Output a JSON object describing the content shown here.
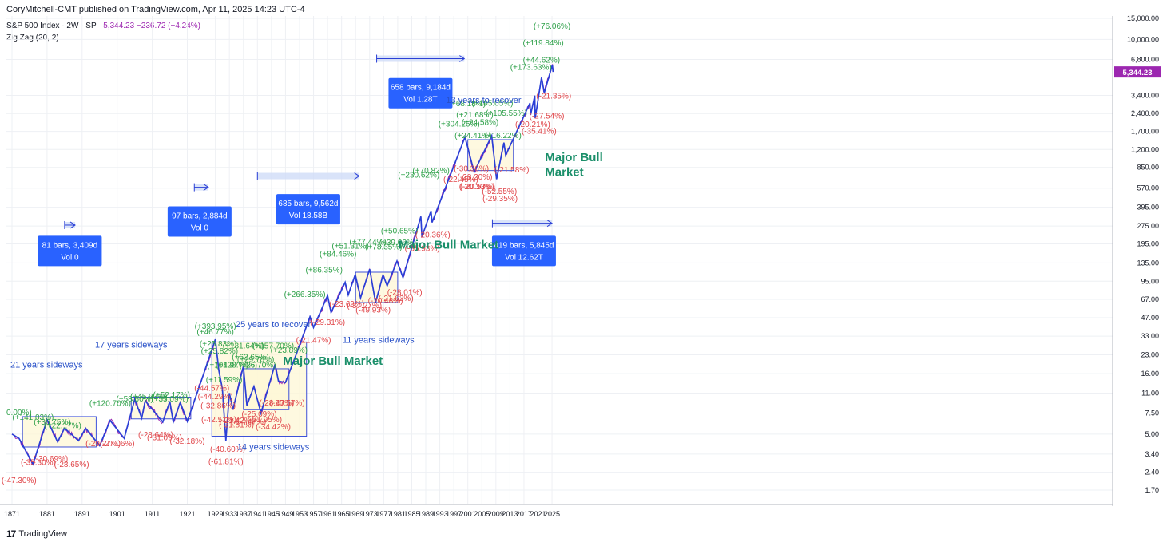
{
  "header": {
    "publish_line": "CoryMitchell-CMT published on TradingView.com, Apr 11, 2025 14:23 UTC-4",
    "symbol": "S&P 500 Index · 2W · SP",
    "price_line": "5,344.23  −236.72 (−4.24%)",
    "indicator": "Zig Zag (20, 2)"
  },
  "footer": {
    "brand": "TradingView",
    "logo_icon": "tradingview-logo-icon"
  },
  "colors": {
    "price": "#9c27b0",
    "zigzag": "#2a3fd6",
    "up": "#2fa14a",
    "down": "#e0464a",
    "annot": "#2850c8",
    "bull": "#1b8f6a",
    "box_fill": "#fdf7d6",
    "range_fill": "#cfdcf7",
    "badge": "#2962ff"
  },
  "chart_data": {
    "type": "line",
    "yscale": "log",
    "x_ticks": [
      "1871",
      "1881",
      "1891",
      "1901",
      "1911",
      "1921",
      "1929",
      "1933",
      "1937",
      "1941",
      "1945",
      "1949",
      "1953",
      "1957",
      "1961",
      "1965",
      "1969",
      "1973",
      "1977",
      "1981",
      "1985",
      "1989",
      "1993",
      "1997",
      "2001",
      "2005",
      "2009",
      "2013",
      "2017",
      "2021",
      "2025"
    ],
    "y_ticks": [
      "15,000.00",
      "10,000.00",
      "6,800.00",
      "3,400.00",
      "2,400.00",
      "1,700.00",
      "1,200.00",
      "850.00",
      "570.00",
      "395.00",
      "275.00",
      "195.00",
      "135.00",
      "95.00",
      "67.00",
      "47.00",
      "33.00",
      "23.00",
      "16.00",
      "11.00",
      "7.50",
      "5.00",
      "3.40",
      "2.40",
      "1.70"
    ],
    "last_price": "5,344.23",
    "series": [
      {
        "values": [
          [
            1871,
            5.0
          ],
          [
            1873,
            4.6
          ],
          [
            1877,
            2.8
          ],
          [
            1881,
            6.6
          ],
          [
            1884,
            4.3
          ],
          [
            1886,
            5.6
          ],
          [
            1890,
            4.4
          ],
          [
            1892,
            5.6
          ],
          [
            1896,
            4.0
          ],
          [
            1899,
            6.5
          ],
          [
            1903,
            4.6
          ],
          [
            1906,
            9.8
          ],
          [
            1908,
            6.8
          ],
          [
            1909,
            9.5
          ],
          [
            1914,
            6.3
          ],
          [
            1916,
            9.4
          ],
          [
            1917,
            6.3
          ],
          [
            1919,
            9.2
          ],
          [
            1921,
            6.4
          ],
          [
            1925,
            14
          ],
          [
            1929,
            31
          ],
          [
            1930,
            17
          ],
          [
            1931,
            12
          ],
          [
            1932,
            4.4
          ],
          [
            1933,
            11
          ],
          [
            1934,
            8
          ],
          [
            1937,
            18.5
          ],
          [
            1938,
            8.7
          ],
          [
            1940,
            12.5
          ],
          [
            1942,
            7.5
          ],
          [
            1946,
            19.2
          ],
          [
            1947,
            13.9
          ],
          [
            1949,
            13.5
          ],
          [
            1952,
            23
          ],
          [
            1956,
            48
          ],
          [
            1957,
            39
          ],
          [
            1961,
            72
          ],
          [
            1962,
            52
          ],
          [
            1966,
            93
          ],
          [
            1966.9,
            73
          ],
          [
            1968.9,
            108
          ],
          [
            1970.4,
            69
          ],
          [
            1973,
            120
          ],
          [
            1974.7,
            63
          ],
          [
            1976.8,
            107
          ],
          [
            1978,
            87
          ],
          [
            1980.8,
            140
          ],
          [
            1982.5,
            102
          ],
          [
            1987.6,
            330
          ],
          [
            1987.9,
            224
          ],
          [
            1990.5,
            368
          ],
          [
            1990.8,
            295
          ],
          [
            2000.2,
            1527
          ],
          [
            2002.8,
            777
          ],
          [
            2007.8,
            1565
          ],
          [
            2009.2,
            677
          ],
          [
            2011.3,
            1370
          ],
          [
            2011.8,
            1075
          ],
          [
            2018.7,
            2930
          ],
          [
            2018.9,
            2351
          ],
          [
            2020.1,
            3386
          ],
          [
            2020.2,
            2192
          ],
          [
            2022,
            4797
          ],
          [
            2022.8,
            3577
          ],
          [
            2025.1,
            6144
          ],
          [
            2025.3,
            5344
          ]
        ]
      }
    ],
    "labels_up": [
      {
        "text": "(+141.03%)",
        "x": 1877,
        "y": 6.6
      },
      {
        "text": "(+36.75%)",
        "x": 1882.5,
        "y": 6.0
      },
      {
        "text": "(+22.17%)",
        "x": 1885.5,
        "y": 5.6
      },
      {
        "text": "(+120.70%)",
        "x": 1899,
        "y": 8.6
      },
      {
        "text": "(+58.60%)",
        "x": 1906,
        "y": 9.4
      },
      {
        "text": "(+45.93%)",
        "x": 1910,
        "y": 9.8
      },
      {
        "text": "(+35.09%)",
        "x": 1916,
        "y": 9.4
      },
      {
        "text": "(+52.17%)",
        "x": 1916.5,
        "y": 10.1
      },
      {
        "text": "(+393.95%)",
        "x": 1929,
        "y": 38
      },
      {
        "text": "(+46.77%)",
        "x": 1929,
        "y": 34
      },
      {
        "text": "(+25.83%)",
        "x": 1929.8,
        "y": 27
      },
      {
        "text": "(+25.82%)",
        "x": 1930.2,
        "y": 23.5
      },
      {
        "text": "(+104.97%)",
        "x": 1932.5,
        "y": 18
      },
      {
        "text": "(+128.74%)",
        "x": 1935,
        "y": 18
      },
      {
        "text": "(+11.59%)",
        "x": 1931.5,
        "y": 13.5
      },
      {
        "text": "(+131.64%)",
        "x": 1937,
        "y": 26
      },
      {
        "text": "(+62.65%)",
        "x": 1939,
        "y": 21
      },
      {
        "text": "(+29.78%)",
        "x": 1940.5,
        "y": 20
      },
      {
        "text": "(+26.70%)",
        "x": 1941,
        "y": 18
      },
      {
        "text": "(+157.70%)",
        "x": 1945.5,
        "y": 26
      },
      {
        "text": "(+23.89%)",
        "x": 1950,
        "y": 24
      },
      {
        "text": "(+266.35%)",
        "x": 1954.5,
        "y": 70
      },
      {
        "text": "(+86.35%)",
        "x": 1960,
        "y": 112
      },
      {
        "text": "(+84.46%)",
        "x": 1964,
        "y": 152
      },
      {
        "text": "(+51.31%)",
        "x": 1967.5,
        "y": 178
      },
      {
        "text": "(+77.44%)",
        "x": 1972.5,
        "y": 192
      },
      {
        "text": "(+78.35%)",
        "x": 1977,
        "y": 175
      },
      {
        "text": "(+39.06%)",
        "x": 1981,
        "y": 190
      },
      {
        "text": "(+50.65%)",
        "x": 1981.5,
        "y": 238
      },
      {
        "text": "(+230.62%)",
        "x": 1987,
        "y": 700
      },
      {
        "text": "(+70.82%)",
        "x": 1990.5,
        "y": 760
      },
      {
        "text": "(+304.26%)",
        "x": 1998.5,
        "y": 1870
      },
      {
        "text": "(+68.18%)",
        "x": 2000.8,
        "y": 2770
      },
      {
        "text": "(+21.68%)",
        "x": 2003,
        "y": 2230
      },
      {
        "text": "(+24.58%)",
        "x": 2004.5,
        "y": 1930
      },
      {
        "text": "(+24.41%)",
        "x": 2002.5,
        "y": 1500
      },
      {
        "text": "(+105.05%)",
        "x": 2008,
        "y": 2780
      },
      {
        "text": "(+105.55%)",
        "x": 2012,
        "y": 2300
      },
      {
        "text": "(+16.22%)",
        "x": 2011,
        "y": 1500
      },
      {
        "text": "(+173.63%)",
        "x": 2019,
        "y": 5550
      },
      {
        "text": "(+44.62%)",
        "x": 2022,
        "y": 6390
      },
      {
        "text": "(+119.84%)",
        "x": 2022.5,
        "y": 8900
      },
      {
        "text": "(+76.06%)",
        "x": 2025,
        "y": 12300
      }
    ],
    "labels_down": [
      {
        "text": "(-47.30%)",
        "x": 1873,
        "y": 1.95
      },
      {
        "text": "(-35.30%)",
        "x": 1878.5,
        "y": 2.75
      },
      {
        "text": "(-30.69%)",
        "x": 1882,
        "y": 2.95
      },
      {
        "text": "(-28.65%)",
        "x": 1888,
        "y": 2.65
      },
      {
        "text": "(-29.27%)",
        "x": 1897,
        "y": 3.95
      },
      {
        "text": "(-27.06%)",
        "x": 1901,
        "y": 3.95
      },
      {
        "text": "(-28.64%)",
        "x": 1912,
        "y": 4.7
      },
      {
        "text": "(-31.09%)",
        "x": 1914.5,
        "y": 4.45
      },
      {
        "text": "(-32.18%)",
        "x": 1921,
        "y": 4.15
      },
      {
        "text": "(-44.57%)",
        "x": 1928,
        "y": 11.5
      },
      {
        "text": "(-44.29%)",
        "x": 1929,
        "y": 9.8
      },
      {
        "text": "(-32.86%)",
        "x": 1929.8,
        "y": 8.2
      },
      {
        "text": "(-42.51%)",
        "x": 1930,
        "y": 6.3
      },
      {
        "text": "(-40.60%)",
        "x": 1932.5,
        "y": 3.55
      },
      {
        "text": "(-61.81%)",
        "x": 1932,
        "y": 2.8
      },
      {
        "text": "(-31.81%)",
        "x": 1935,
        "y": 5.7
      },
      {
        "text": "(-21.42%)",
        "x": 1935,
        "y": 6.2
      },
      {
        "text": "(-54.47%)",
        "x": 1938.5,
        "y": 6.05
      },
      {
        "text": "(-25.09%)",
        "x": 1941.5,
        "y": 7.0
      },
      {
        "text": "(-21.95%)",
        "x": 1943,
        "y": 6.3
      },
      {
        "text": "(-34.42%)",
        "x": 1945.5,
        "y": 5.45
      },
      {
        "text": "(-28.47%)",
        "x": 1946.5,
        "y": 8.7
      },
      {
        "text": "(-20.57%)",
        "x": 1949.5,
        "y": 8.7
      },
      {
        "text": "(-21.47%)",
        "x": 1957,
        "y": 29
      },
      {
        "text": "(-29.31%)",
        "x": 1961,
        "y": 41
      },
      {
        "text": "(-23.69%)",
        "x": 1966.5,
        "y": 58.5
      },
      {
        "text": "(-37.27%)",
        "x": 1971.5,
        "y": 56.5
      },
      {
        "text": "(-49.93%)",
        "x": 1974,
        "y": 52
      },
      {
        "text": "(-20.48%)",
        "x": 1977.5,
        "y": 62
      },
      {
        "text": "(-21.62%)",
        "x": 1980.5,
        "y": 65
      },
      {
        "text": "(-28.01%)",
        "x": 1983,
        "y": 73
      },
      {
        "text": "(-35.93%)",
        "x": 1988,
        "y": 170
      },
      {
        "text": "(-20.36%)",
        "x": 1991,
        "y": 220
      },
      {
        "text": "(-22.45%)",
        "x": 1999,
        "y": 640
      },
      {
        "text": "(-30.36%)",
        "x": 2002,
        "y": 790
      },
      {
        "text": "(-28.20%)",
        "x": 2003,
        "y": 670
      },
      {
        "text": "(-20.30%)",
        "x": 2003.5,
        "y": 560
      },
      {
        "text": "(-20.53%)",
        "x": 2003.8,
        "y": 560
      },
      {
        "text": "(-52.55%)",
        "x": 2010,
        "y": 510
      },
      {
        "text": "(-29.35%)",
        "x": 2010.2,
        "y": 445
      },
      {
        "text": "(-21.58%)",
        "x": 2013.5,
        "y": 770
      },
      {
        "text": "(-20.21%)",
        "x": 2019.5,
        "y": 1860
      },
      {
        "text": "(-35.41%)",
        "x": 2021.3,
        "y": 1630
      },
      {
        "text": "(-27.54%)",
        "x": 2023.5,
        "y": 2180
      },
      {
        "text": "(-21.35%)",
        "x": 2025.5,
        "y": 3200
      }
    ],
    "annotations": [
      {
        "text": "21 years sideways",
        "x": 1875.3,
        "y": 18,
        "kind": "note"
      },
      {
        "text": "17 years sideways",
        "x": 1905,
        "y": 26.5,
        "kind": "note"
      },
      {
        "text": "25 years to recover",
        "x": 1945.5,
        "y": 39,
        "kind": "note"
      },
      {
        "text": "14 years sideways",
        "x": 1945.5,
        "y": 3.7,
        "kind": "note"
      },
      {
        "text": "11 years sideways",
        "x": 1975.5,
        "y": 29,
        "kind": "note"
      },
      {
        "text": "13 years to recover",
        "x": 2005.5,
        "y": 2950,
        "kind": "note"
      },
      {
        "text": "Major Bull Market",
        "x": 1962.5,
        "y": 19,
        "kind": "bull"
      },
      {
        "text": "Major Bull Market",
        "x": 1995.5,
        "y": 178,
        "kind": "bull"
      },
      {
        "text": "Major Bull",
        "x": 2023,
        "y": 960,
        "kind": "bull"
      },
      {
        "text": "Market",
        "x": 2023,
        "y": 720,
        "kind": "bull"
      },
      {
        "text": "0.00%)",
        "x": 1871,
        "y": 7.2,
        "kind": "cut"
      }
    ],
    "boxes": [
      {
        "x0": 1874,
        "x1": 1895,
        "y0": 3.9,
        "y1": 7.0
      },
      {
        "x0": 1905,
        "x1": 1922,
        "y0": 6.7,
        "y1": 10.2
      },
      {
        "x0": 1928,
        "x1": 1955,
        "y0": 4.8,
        "y1": 29.5
      },
      {
        "x0": 1937,
        "x1": 1950,
        "y0": 8.0,
        "y1": 17.6
      },
      {
        "x0": 1969,
        "x1": 1981,
        "y0": 63,
        "y1": 113
      },
      {
        "x0": 2001,
        "x1": 2014,
        "y0": 800,
        "y1": 1450
      }
    ],
    "ranges": [
      {
        "x0": 1886,
        "x1": 1889,
        "y": 280
      },
      {
        "x0": 1923,
        "x1": 1927,
        "y": 580
      },
      {
        "x0": 1941,
        "x1": 1970,
        "y": 720
      },
      {
        "x0": 1975,
        "x1": 2000,
        "y": 6900
      },
      {
        "x0": 2008,
        "x1": 2025,
        "y": 290
      }
    ],
    "badges": [
      {
        "line1": "81 bars, 3,409d",
        "line2": "Vol 0",
        "x": 1887.5,
        "y": 170
      },
      {
        "line1": "97 bars, 2,884d",
        "line2": "Vol 0",
        "x": 1924.5,
        "y": 300
      },
      {
        "line1": "685 bars, 9,562d",
        "line2": "Vol 18.58B",
        "x": 1955.5,
        "y": 380
      },
      {
        "line1": "658 bars, 9,184d",
        "line2": "Vol 1.28T",
        "x": 1987.5,
        "y": 3550
      },
      {
        "line1": "419 bars, 5,845d",
        "line2": "Vol 12.62T",
        "x": 2017,
        "y": 170
      }
    ]
  }
}
